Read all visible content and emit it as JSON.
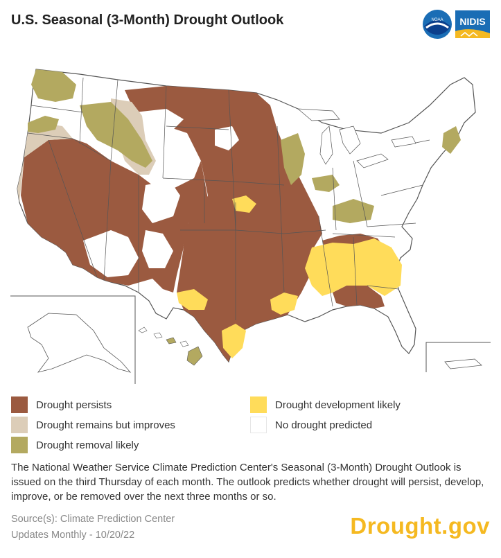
{
  "header": {
    "title": "U.S. Seasonal (3-Month) Drought Outlook",
    "logos": [
      {
        "name": "noaa-logo",
        "text": "NOAA"
      },
      {
        "name": "nidis-logo",
        "text": "NIDIS"
      }
    ]
  },
  "legend": {
    "items": [
      {
        "label": "Drought persists",
        "color": "#9b5a40"
      },
      {
        "label": "Drought remains but improves",
        "color": "#dccdb8"
      },
      {
        "label": "Drought removal likely",
        "color": "#b3a960"
      },
      {
        "label": "Drought development likely",
        "color": "#ffdc5a"
      },
      {
        "label": "No drought predicted",
        "color": "#ffffff"
      }
    ]
  },
  "description": "The National Weather Service Climate Prediction Center's Seasonal (3-Month) Drought Outlook is issued on the third Thursday of each month. The outlook predicts whether drought will persist, develop, improve, or be removed over the next three months or so.",
  "footer": {
    "source": "Source(s): Climate Prediction Center",
    "updates": "Updates Monthly - 10/20/22",
    "brand": "Drought.gov"
  }
}
